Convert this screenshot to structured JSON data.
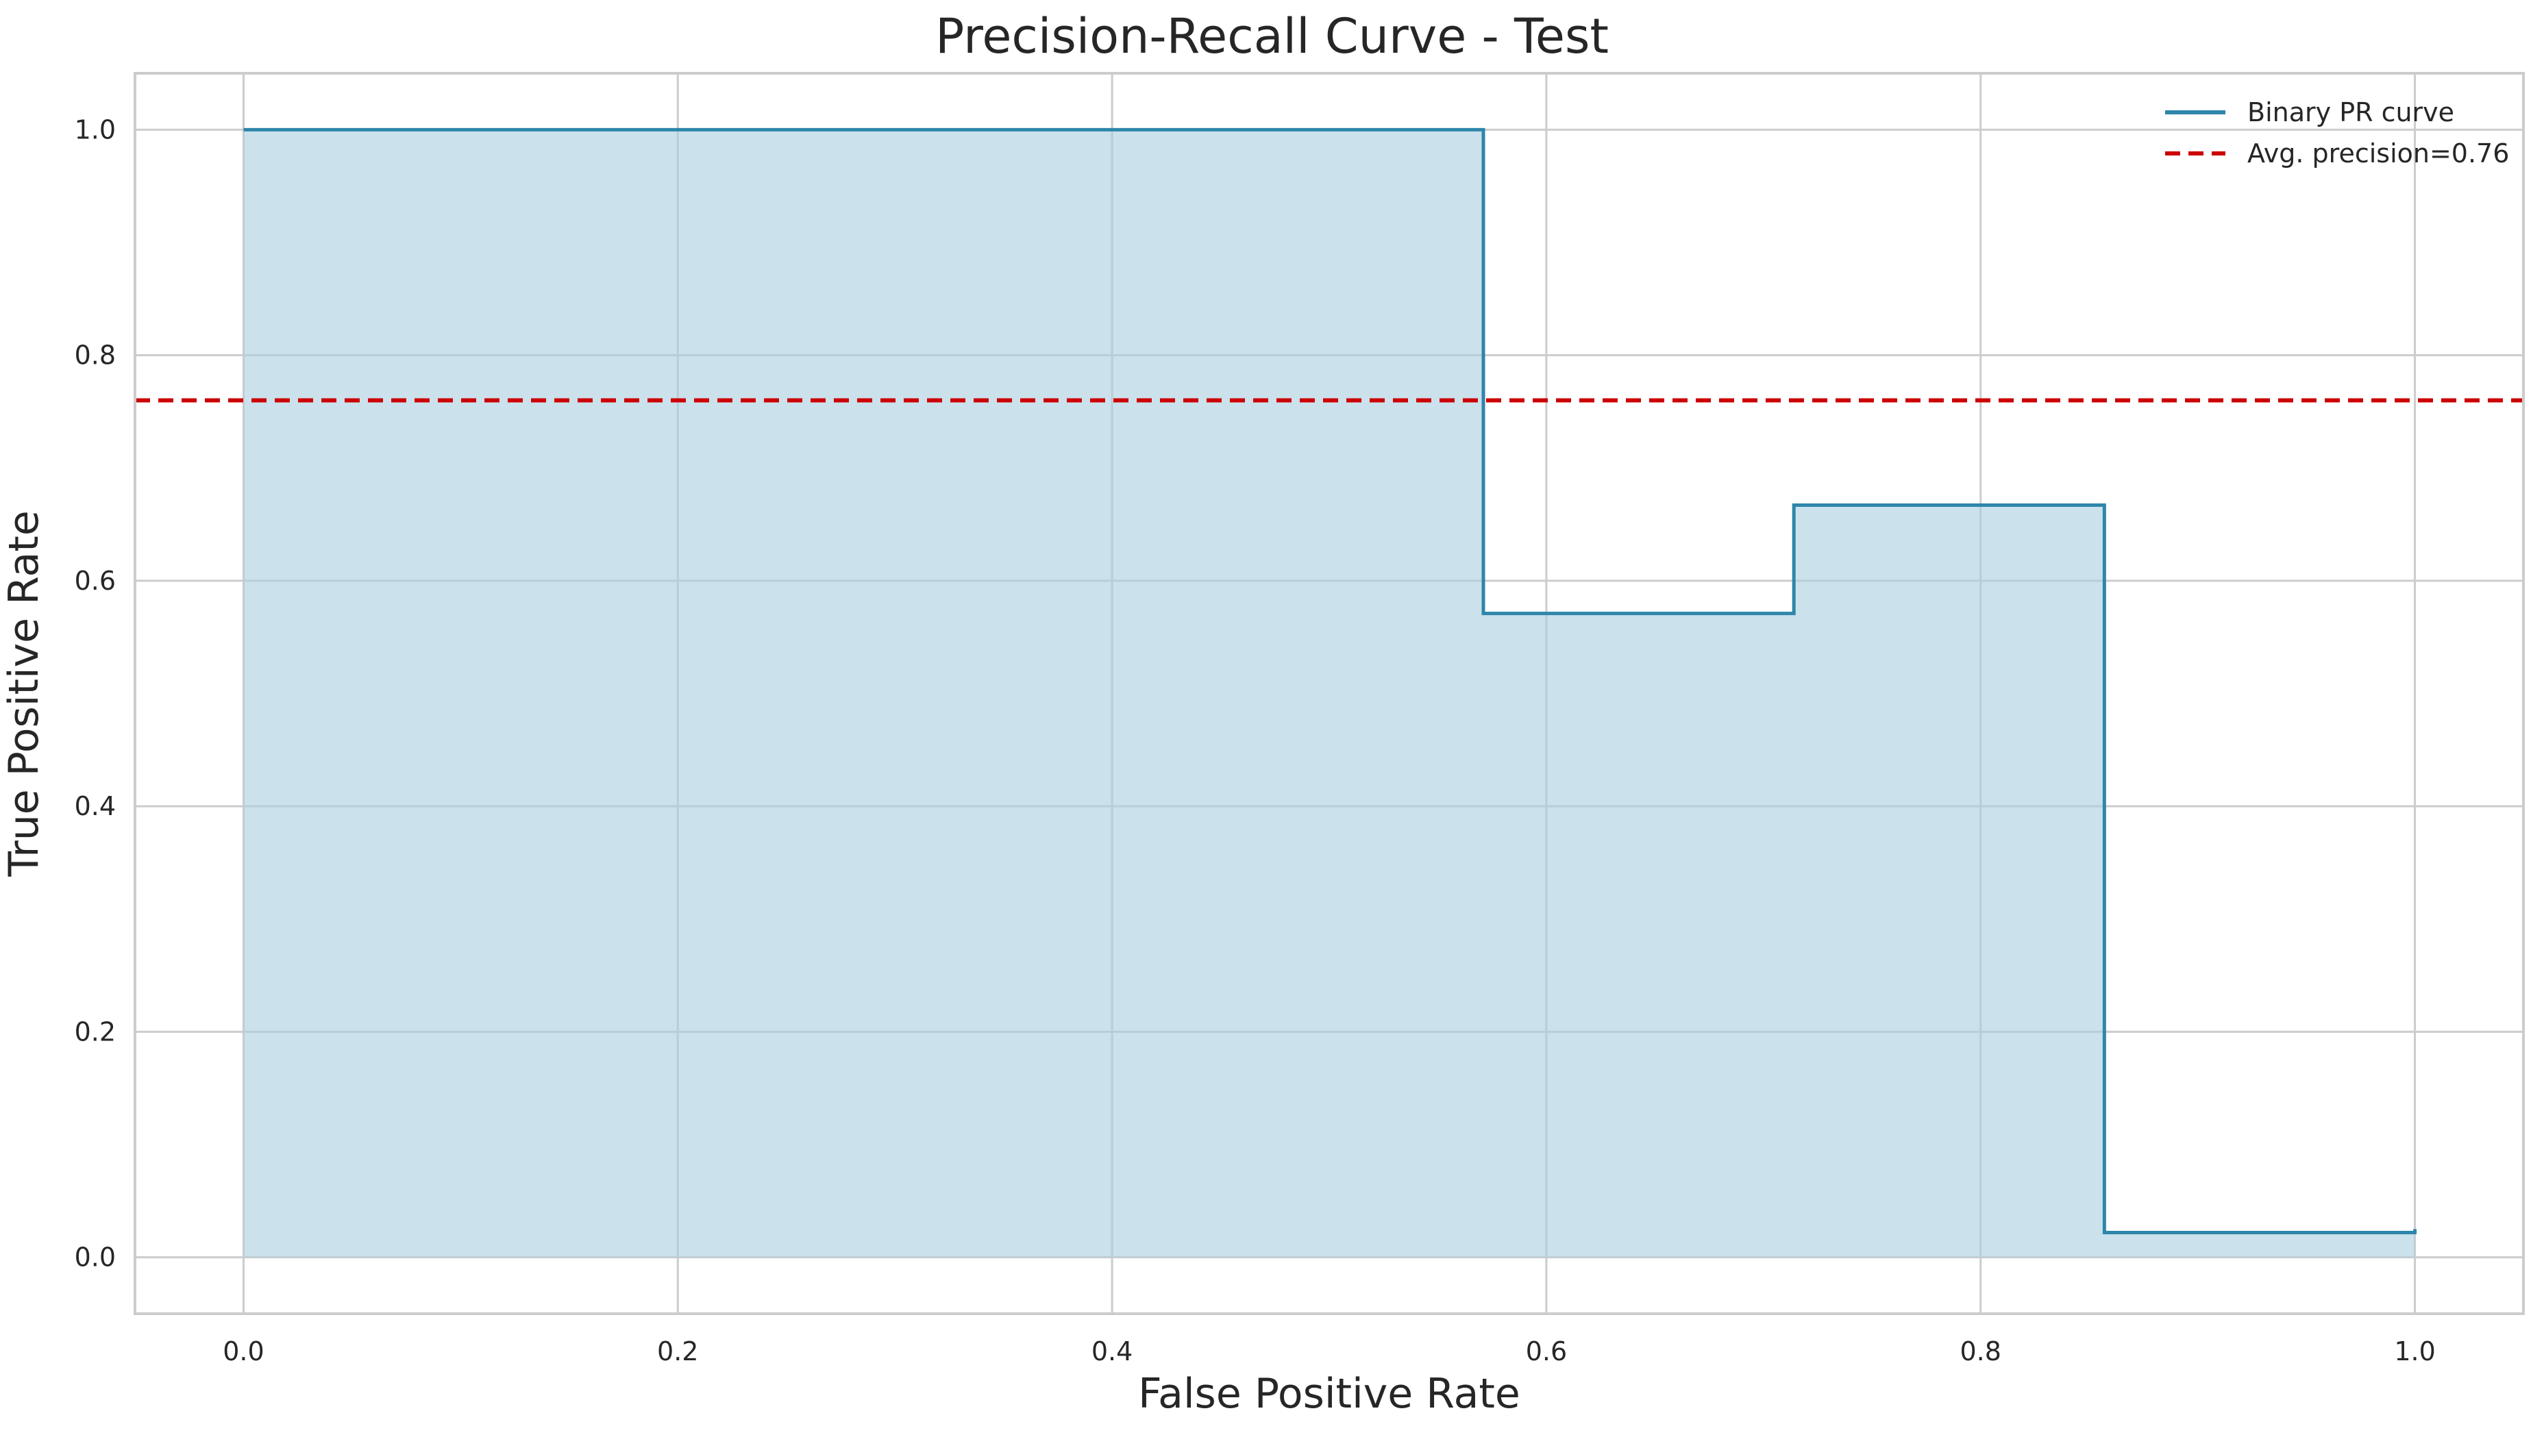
{
  "chart_data": {
    "type": "line",
    "title": "Precision-Recall Curve - Test",
    "xlabel": "False Positive Rate",
    "ylabel": "True Positive Rate",
    "xlim": [
      -0.05,
      1.05
    ],
    "ylim": [
      -0.05,
      1.05
    ],
    "xticks": [
      0.0,
      0.2,
      0.4,
      0.6,
      0.8,
      1.0
    ],
    "xtick_labels": [
      "0.0",
      "0.2",
      "0.4",
      "0.6",
      "0.8",
      "1.0"
    ],
    "yticks": [
      0.0,
      0.2,
      0.4,
      0.6,
      0.8,
      1.0
    ],
    "ytick_labels": [
      "0.0",
      "0.2",
      "0.4",
      "0.6",
      "0.8",
      "1.0"
    ],
    "grid": true,
    "legend_position": "top-right",
    "series": [
      {
        "name": "Binary PR curve",
        "style": "step",
        "color": "#2e86ab",
        "fill_color": "#a9cde0",
        "x": [
          0.0,
          0.571,
          0.571,
          0.714,
          0.714,
          0.857,
          0.857,
          1.0
        ],
        "y": [
          1.0,
          1.0,
          0.571,
          0.625,
          0.667,
          0.667,
          0.022,
          0.025
        ]
      },
      {
        "name": "Avg. precision=0.76",
        "style": "hline",
        "color": "#cc0000",
        "y": 0.76
      }
    ]
  }
}
